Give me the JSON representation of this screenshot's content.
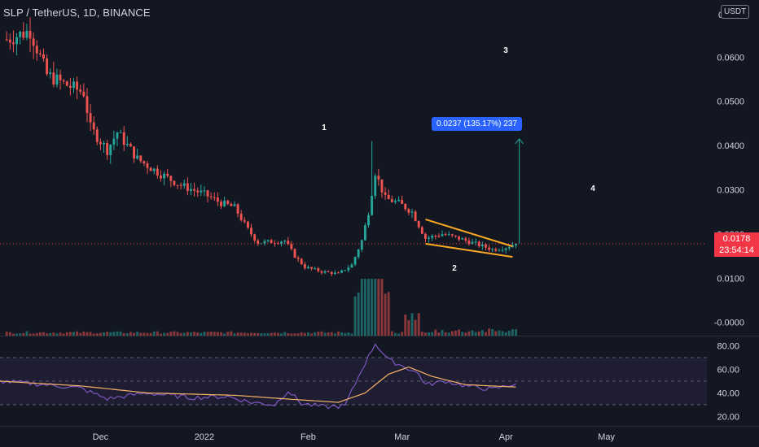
{
  "header": {
    "symbol_title": "SLP / TetherUS, 1D, BINANCE",
    "currency": "USDT"
  },
  "colors": {
    "background": "#131722",
    "up": "#26a69a",
    "down": "#ef5350",
    "rsi_line": "#7e57c2",
    "rsi_ma": "#f7b267",
    "pattern_lines": "#f9a825",
    "measure": "#2962ff",
    "price_line": "#f23645"
  },
  "price_tag": {
    "price": "0.0178",
    "countdown": "23:54:14"
  },
  "measure_tool": {
    "label": "0.0237 (135.17%) 237"
  },
  "chart_data": [
    {
      "type": "candlestick",
      "name": "price",
      "y_ticks": [
        "0.0600",
        "0.0500",
        "0.0400",
        "0.0300",
        "0.0200",
        "0.0100",
        "-0.0000"
      ],
      "y_tick_values": [
        0.06,
        0.05,
        0.04,
        0.03,
        0.02,
        0.01,
        0.0
      ],
      "top_tick_partial": "0",
      "ylim": [
        -0.003,
        0.072
      ],
      "x_labels": [
        "Dec",
        "2022",
        "Feb",
        "Mar",
        "Apr",
        "May"
      ],
      "x_label_dates": [
        "2021-12-01",
        "2022-01-01",
        "2022-02-01",
        "2022-03-01",
        "2022-04-01",
        "2022-05-01"
      ],
      "xlim": [
        "2021-11-01",
        "2022-05-31"
      ],
      "anchors": [
        {
          "date": "2021-11-03",
          "close": 0.064
        },
        {
          "date": "2021-11-10",
          "close": 0.066
        },
        {
          "date": "2021-11-15",
          "close": 0.056
        },
        {
          "date": "2021-11-20",
          "close": 0.054
        },
        {
          "date": "2021-11-26",
          "close": 0.052
        },
        {
          "date": "2021-11-28",
          "close": 0.044
        },
        {
          "date": "2021-12-03",
          "close": 0.039
        },
        {
          "date": "2021-12-06",
          "close": 0.043
        },
        {
          "date": "2021-12-12",
          "close": 0.037
        },
        {
          "date": "2021-12-18",
          "close": 0.034
        },
        {
          "date": "2021-12-25",
          "close": 0.031
        },
        {
          "date": "2022-01-01",
          "close": 0.029
        },
        {
          "date": "2022-01-06",
          "close": 0.027
        },
        {
          "date": "2022-01-10",
          "close": 0.026
        },
        {
          "date": "2022-01-14",
          "close": 0.021
        },
        {
          "date": "2022-01-17",
          "close": 0.018
        },
        {
          "date": "2022-01-25",
          "close": 0.0185
        },
        {
          "date": "2022-01-28",
          "close": 0.015
        },
        {
          "date": "2022-01-31",
          "close": 0.0125
        },
        {
          "date": "2022-02-05",
          "close": 0.0115
        },
        {
          "date": "2022-02-10",
          "close": 0.011
        },
        {
          "date": "2022-02-14",
          "close": 0.013
        },
        {
          "date": "2022-02-17",
          "close": 0.0185
        },
        {
          "date": "2022-02-19",
          "close": 0.025
        },
        {
          "date": "2022-02-21",
          "close": 0.034
        },
        {
          "date": "2022-02-24",
          "close": 0.028
        },
        {
          "date": "2022-02-28",
          "close": 0.027
        },
        {
          "date": "2022-03-04",
          "close": 0.025
        },
        {
          "date": "2022-03-08",
          "close": 0.019
        },
        {
          "date": "2022-03-13",
          "close": 0.02
        },
        {
          "date": "2022-03-18",
          "close": 0.019
        },
        {
          "date": "2022-03-24",
          "close": 0.0175
        },
        {
          "date": "2022-03-28",
          "close": 0.0165
        },
        {
          "date": "2022-04-01",
          "close": 0.017
        },
        {
          "date": "2022-04-04",
          "close": 0.0178
        }
      ],
      "spike_high": {
        "date": "2022-02-20",
        "value": 0.041
      },
      "current_price": 0.0178,
      "wave_labels": [
        "1",
        "2",
        "3",
        "4"
      ],
      "pattern": {
        "name": "falling wedge",
        "upper": [
          {
            "date": "2022-03-08",
            "value": 0.0233
          },
          {
            "date": "2022-04-03",
            "value": 0.0172
          }
        ],
        "lower": [
          {
            "date": "2022-03-08",
            "value": 0.0178
          },
          {
            "date": "2022-04-03",
            "value": 0.0148
          }
        ]
      },
      "measure": {
        "date": "2022-04-05",
        "from": 0.0178,
        "to": 0.0415
      }
    },
    {
      "type": "bar",
      "name": "volume",
      "note": "relative volume, no axis"
    },
    {
      "type": "line",
      "name": "RSI",
      "y_ticks": [
        "80.00",
        "60.00",
        "40.00",
        "20.00"
      ],
      "y_tick_values": [
        80,
        60,
        40,
        20
      ],
      "ylim": [
        12,
        88
      ],
      "band": [
        30,
        70
      ],
      "midline": 50,
      "anchors": [
        {
          "date": "2021-11-01",
          "value": 50
        },
        {
          "date": "2021-11-15",
          "value": 47
        },
        {
          "date": "2021-11-25",
          "value": 44
        },
        {
          "date": "2021-12-03",
          "value": 35
        },
        {
          "date": "2021-12-15",
          "value": 40
        },
        {
          "date": "2021-12-28",
          "value": 36
        },
        {
          "date": "2022-01-08",
          "value": 37
        },
        {
          "date": "2022-01-15",
          "value": 32
        },
        {
          "date": "2022-01-22",
          "value": 30
        },
        {
          "date": "2022-01-26",
          "value": 42
        },
        {
          "date": "2022-01-30",
          "value": 31
        },
        {
          "date": "2022-02-06",
          "value": 28
        },
        {
          "date": "2022-02-12",
          "value": 29
        },
        {
          "date": "2022-02-17",
          "value": 60
        },
        {
          "date": "2022-02-21",
          "value": 82
        },
        {
          "date": "2022-02-25",
          "value": 68
        },
        {
          "date": "2022-03-02",
          "value": 62
        },
        {
          "date": "2022-03-06",
          "value": 56
        },
        {
          "date": "2022-03-08",
          "value": 47
        },
        {
          "date": "2022-03-14",
          "value": 50
        },
        {
          "date": "2022-03-20",
          "value": 46
        },
        {
          "date": "2022-03-28",
          "value": 43
        },
        {
          "date": "2022-04-04",
          "value": 48
        }
      ],
      "ma_anchors": [
        {
          "date": "2021-11-01",
          "value": 50
        },
        {
          "date": "2021-11-25",
          "value": 46
        },
        {
          "date": "2021-12-15",
          "value": 40
        },
        {
          "date": "2022-01-10",
          "value": 38
        },
        {
          "date": "2022-01-25",
          "value": 35
        },
        {
          "date": "2022-02-10",
          "value": 32
        },
        {
          "date": "2022-02-18",
          "value": 40
        },
        {
          "date": "2022-02-25",
          "value": 56
        },
        {
          "date": "2022-03-03",
          "value": 62
        },
        {
          "date": "2022-03-10",
          "value": 54
        },
        {
          "date": "2022-03-20",
          "value": 47
        },
        {
          "date": "2022-04-04",
          "value": 45
        }
      ]
    }
  ]
}
